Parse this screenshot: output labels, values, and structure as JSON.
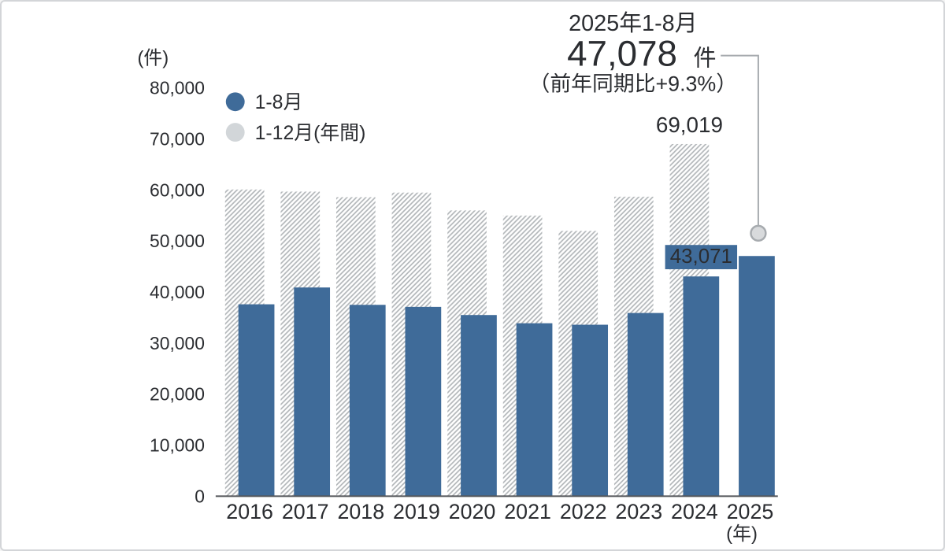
{
  "page": {
    "background": "#ffffff",
    "border_color": "#d3d5d8"
  },
  "chart_data": {
    "type": "bar",
    "unit_label": "(件)",
    "year_axis_label": "(年)",
    "categories": [
      "2016",
      "2017",
      "2018",
      "2019",
      "2020",
      "2021",
      "2022",
      "2023",
      "2024",
      "2025"
    ],
    "series": [
      {
        "name": "1-8月",
        "style": "solid",
        "color": "#3f6b99",
        "values": [
          37600,
          40900,
          37500,
          37100,
          35500,
          33900,
          33600,
          35900,
          43071,
          47078
        ]
      },
      {
        "name": "1-12月(年間)",
        "style": "hatched",
        "stripe_color": "#b3b7ba",
        "values": [
          60100,
          59700,
          58600,
          59500,
          56000,
          55000,
          52000,
          58700,
          69019,
          null
        ]
      }
    ],
    "ylim": [
      0,
      80000
    ],
    "yticks": [
      {
        "value": 0,
        "label": "0"
      },
      {
        "value": 10000,
        "label": "10,000"
      },
      {
        "value": 20000,
        "label": "20,000"
      },
      {
        "value": 30000,
        "label": "30,000"
      },
      {
        "value": 40000,
        "label": "40,000"
      },
      {
        "value": 50000,
        "label": "50,000"
      },
      {
        "value": 60000,
        "label": "60,000"
      },
      {
        "value": 70000,
        "label": "70,000"
      },
      {
        "value": 80000,
        "label": "80,000"
      }
    ],
    "grid": false,
    "legend_position": "top-left",
    "annotations": {
      "callout_title": "2025年1-8月",
      "callout_value": "47,078",
      "callout_unit": "件",
      "callout_note": "（前年同期比+9.3%）",
      "annual_2024_label": "69,019",
      "aug_2024_badge": "43,071"
    },
    "colors": {
      "bar_blue": "#3f6b99",
      "hatch_stripe": "#b3b7ba",
      "legend_gray_dot": "#d2d6d9",
      "text_dark": "#2b2d31",
      "text_gray": "#83888e",
      "axis_line": "#54565a",
      "leader_line": "#a7abaf",
      "marker_fill": "#d8dadc",
      "badge_text": "#ffffff"
    }
  }
}
